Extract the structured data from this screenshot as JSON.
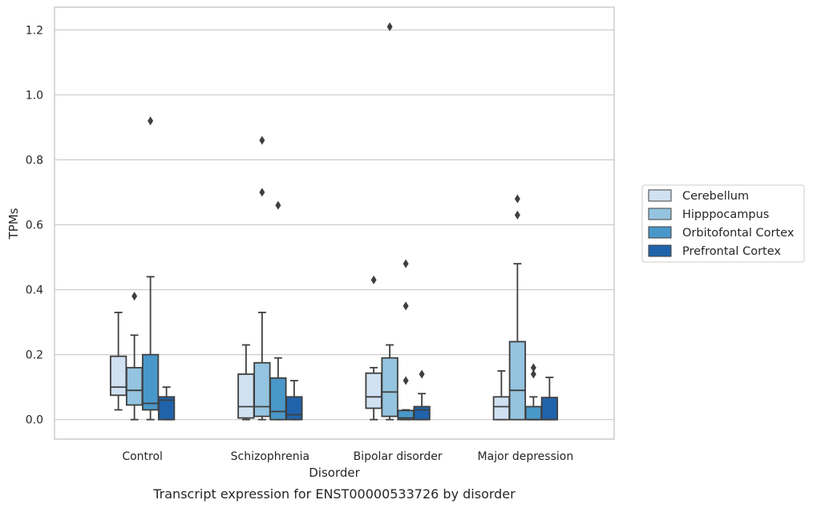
{
  "chart_data": {
    "type": "box",
    "title": "",
    "caption": "Transcript expression for ENST00000533726 by disorder",
    "xlabel": "Disorder",
    "ylabel": "TPMs",
    "ylim": [
      -0.06,
      1.27
    ],
    "yticks": [
      "0.0",
      "0.2",
      "0.4",
      "0.6",
      "0.8",
      "1.0",
      "1.2"
    ],
    "grid": true,
    "legend_position": "right",
    "categories": [
      "Control",
      "Schizophrenia",
      "Bipolar disorder",
      "Major depression"
    ],
    "series": [
      {
        "name": "Cerebellum",
        "color": "#d0e1f2",
        "boxes": [
          {
            "whislo": 0.03,
            "q1": 0.075,
            "med": 0.1,
            "q3": 0.195,
            "whishi": 0.33,
            "fliers": []
          },
          {
            "whislo": 0.0,
            "q1": 0.005,
            "med": 0.04,
            "q3": 0.14,
            "whishi": 0.23,
            "fliers": []
          },
          {
            "whislo": 0.0,
            "q1": 0.035,
            "med": 0.07,
            "q3": 0.143,
            "whishi": 0.16,
            "fliers": [
              0.43
            ]
          },
          {
            "whislo": 0.0,
            "q1": 0.0,
            "med": 0.04,
            "q3": 0.07,
            "whishi": 0.15,
            "fliers": []
          }
        ]
      },
      {
        "name": "Hipppocampus",
        "color": "#94c4df",
        "boxes": [
          {
            "whislo": 0.0,
            "q1": 0.045,
            "med": 0.09,
            "q3": 0.16,
            "whishi": 0.26,
            "fliers": [
              0.38
            ]
          },
          {
            "whislo": 0.0,
            "q1": 0.01,
            "med": 0.04,
            "q3": 0.175,
            "whishi": 0.33,
            "fliers": [
              0.86,
              0.7
            ]
          },
          {
            "whislo": 0.0,
            "q1": 0.01,
            "med": 0.085,
            "q3": 0.19,
            "whishi": 0.23,
            "fliers": [
              1.21
            ]
          },
          {
            "whislo": 0.0,
            "q1": 0.0,
            "med": 0.09,
            "q3": 0.24,
            "whishi": 0.48,
            "fliers": [
              0.68,
              0.63
            ]
          }
        ]
      },
      {
        "name": "Orbitofontal Cortex",
        "color": "#4a98c9",
        "boxes": [
          {
            "whislo": 0.0,
            "q1": 0.03,
            "med": 0.05,
            "q3": 0.2,
            "whishi": 0.44,
            "fliers": [
              0.92
            ]
          },
          {
            "whislo": 0.0,
            "q1": 0.0,
            "med": 0.025,
            "q3": 0.128,
            "whishi": 0.19,
            "fliers": [
              0.66
            ]
          },
          {
            "whislo": 0.0,
            "q1": 0.0,
            "med": 0.005,
            "q3": 0.028,
            "whishi": 0.03,
            "fliers": [
              0.48,
              0.35,
              0.12
            ]
          },
          {
            "whislo": 0.0,
            "q1": 0.0,
            "med": 0.0,
            "q3": 0.04,
            "whishi": 0.07,
            "fliers": [
              0.16,
              0.14
            ]
          }
        ]
      },
      {
        "name": "Prefrontal Cortex",
        "color": "#2163aa",
        "boxes": [
          {
            "whislo": 0.0,
            "q1": 0.0,
            "med": 0.06,
            "q3": 0.07,
            "whishi": 0.1,
            "fliers": []
          },
          {
            "whislo": 0.0,
            "q1": 0.0,
            "med": 0.015,
            "q3": 0.07,
            "whishi": 0.12,
            "fliers": []
          },
          {
            "whislo": 0.0,
            "q1": 0.0,
            "med": 0.03,
            "q3": 0.04,
            "whishi": 0.08,
            "fliers": [
              0.14
            ]
          },
          {
            "whislo": 0.0,
            "q1": 0.0,
            "med": 0.0,
            "q3": 0.068,
            "whishi": 0.13,
            "fliers": []
          }
        ]
      }
    ]
  }
}
